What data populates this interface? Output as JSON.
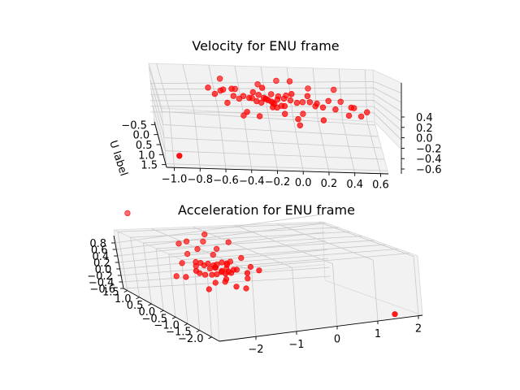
{
  "chart_data": [
    {
      "type": "scatter3d",
      "title": "Velocity for ENU frame",
      "xlabel": "",
      "ylabel": "U label",
      "zlabel": "",
      "x_ticks": [
        "−1.0",
        "−0.8",
        "−0.6",
        "−0.4",
        "−0.2",
        "0.0",
        "0.2",
        "0.4",
        "0.6"
      ],
      "y_ticks": [
        "−0.5",
        "0.0",
        "0.5",
        "1.0",
        "1.5"
      ],
      "z_ticks": [
        "0.4",
        "0.2",
        "0.0",
        "−0.2",
        "−0.4",
        "−0.6"
      ],
      "xlim": [
        -1.05,
        0.65
      ],
      "ylim": [
        -0.8,
        1.6
      ],
      "zlim": [
        -0.7,
        0.5
      ],
      "marker_color": "#ff0000",
      "points": [
        [
          -0.25,
          0.05,
          0.05
        ],
        [
          -0.2,
          0.1,
          0.02
        ],
        [
          -0.15,
          -0.05,
          0.0
        ],
        [
          -0.1,
          0.0,
          0.05
        ],
        [
          -0.3,
          0.0,
          0.1
        ],
        [
          -0.22,
          -0.1,
          -0.05
        ],
        [
          -0.18,
          0.15,
          0.0
        ],
        [
          -0.12,
          0.05,
          -0.08
        ],
        [
          -0.28,
          0.08,
          -0.02
        ],
        [
          -0.05,
          0.02,
          0.03
        ],
        [
          -0.35,
          -0.05,
          0.0
        ],
        [
          -0.08,
          -0.12,
          0.06
        ],
        [
          -0.2,
          -0.02,
          0.12
        ],
        [
          -0.16,
          0.2,
          -0.05
        ],
        [
          -0.24,
          0.12,
          0.08
        ],
        [
          0.0,
          0.05,
          0.0
        ],
        [
          -0.32,
          0.15,
          0.04
        ],
        [
          -0.1,
          0.18,
          -0.02
        ],
        [
          -0.42,
          0.0,
          0.06
        ],
        [
          -0.14,
          -0.15,
          0.02
        ],
        [
          -0.5,
          0.1,
          0.1
        ],
        [
          0.05,
          -0.1,
          -0.05
        ],
        [
          -0.55,
          0.2,
          0.0
        ],
        [
          0.1,
          0.1,
          0.05
        ],
        [
          -0.6,
          0.0,
          0.15
        ],
        [
          0.15,
          -0.05,
          -0.1
        ],
        [
          -0.45,
          -0.1,
          -0.05
        ],
        [
          0.2,
          0.2,
          0.0
        ],
        [
          -0.65,
          0.25,
          0.2
        ],
        [
          0.25,
          0.0,
          0.05
        ],
        [
          -0.7,
          0.1,
          0.25
        ],
        [
          0.3,
          0.15,
          -0.05
        ],
        [
          -0.38,
          0.25,
          0.15
        ],
        [
          0.35,
          -0.1,
          0.0
        ],
        [
          -0.6,
          -0.2,
          0.3
        ],
        [
          0.4,
          0.3,
          -0.1
        ],
        [
          -0.3,
          -0.25,
          0.2
        ],
        [
          0.45,
          0.05,
          -0.05
        ],
        [
          -0.52,
          0.3,
          0.35
        ],
        [
          0.5,
          0.2,
          -0.15
        ],
        [
          -0.25,
          -0.3,
          -0.1
        ],
        [
          0.0,
          0.35,
          -0.2
        ],
        [
          -0.15,
          -0.35,
          0.25
        ],
        [
          0.55,
          0.1,
          -0.1
        ],
        [
          -0.05,
          0.3,
          0.3
        ],
        [
          0.1,
          -0.3,
          0.15
        ],
        [
          -0.4,
          0.35,
          -0.1
        ],
        [
          0.2,
          0.35,
          -0.2
        ],
        [
          -0.2,
          0.4,
          0.05
        ],
        [
          0.3,
          -0.2,
          0.2
        ],
        [
          -0.48,
          -0.2,
          0.1
        ],
        [
          0.05,
          0.0,
          -0.25
        ],
        [
          -0.1,
          0.25,
          -0.15
        ],
        [
          0.15,
          0.25,
          0.1
        ],
        [
          -0.3,
          0.3,
          -0.2
        ],
        [
          -0.58,
          0.05,
          0.2
        ],
        [
          0.42,
          0.25,
          0.05
        ],
        [
          -0.18,
          -0.2,
          -0.15
        ],
        [
          0.08,
          0.15,
          0.2
        ],
        [
          -0.35,
          0.2,
          0.25
        ],
        [
          -0.95,
          1.5,
          -0.5
        ],
        [
          -0.28,
          0.3,
          0.4
        ],
        [
          -0.05,
          -0.15,
          0.35
        ],
        [
          0.02,
          0.2,
          -0.4
        ],
        [
          -0.42,
          0.1,
          -0.3
        ]
      ]
    },
    {
      "type": "scatter3d",
      "title": "Acceleration for ENU frame",
      "xlabel": "",
      "ylabel": "",
      "zlabel": "",
      "x_ticks": [
        "−2",
        "−1",
        "0",
        "1",
        "2"
      ],
      "y_ticks": [
        "1.5",
        "1.0",
        "0.5",
        "0.0",
        "−0.5",
        "−1.0",
        "−1.5",
        "−2.0"
      ],
      "z_ticks": [
        "0.8",
        "0.6",
        "0.4",
        "0.2",
        "0.0",
        "−0.2",
        "−0.4",
        "−0.6"
      ],
      "xlim": [
        -2.6,
        2.4
      ],
      "ylim": [
        -2.2,
        1.7
      ],
      "zlim": [
        -0.7,
        0.9
      ],
      "marker_color": "#ff0000",
      "points": [
        [
          -1.2,
          0.1,
          0.05
        ],
        [
          -1.1,
          0.0,
          0.0
        ],
        [
          -1.3,
          0.2,
          0.1
        ],
        [
          -1.0,
          -0.1,
          0.05
        ],
        [
          -1.25,
          -0.05,
          -0.05
        ],
        [
          -1.15,
          0.15,
          -0.02
        ],
        [
          -0.95,
          0.05,
          0.02
        ],
        [
          -1.35,
          0.05,
          0.08
        ],
        [
          -1.05,
          0.25,
          0.0
        ],
        [
          -1.2,
          -0.15,
          0.12
        ],
        [
          -1.1,
          0.3,
          -0.08
        ],
        [
          -0.9,
          -0.05,
          -0.05
        ],
        [
          -1.4,
          -0.1,
          0.0
        ],
        [
          -1.0,
          0.15,
          0.15
        ],
        [
          -1.3,
          0.35,
          -0.1
        ],
        [
          -0.85,
          0.2,
          0.05
        ],
        [
          -1.45,
          0.25,
          0.1
        ],
        [
          -1.15,
          -0.25,
          -0.05
        ],
        [
          -0.8,
          -0.1,
          0.1
        ],
        [
          -1.5,
          0.0,
          -0.08
        ],
        [
          -1.05,
          0.4,
          0.2
        ],
        [
          -0.75,
          0.1,
          -0.1
        ],
        [
          -1.6,
          0.2,
          0.2
        ],
        [
          -1.2,
          -0.3,
          0.2
        ],
        [
          -0.7,
          0.3,
          0.0
        ],
        [
          -1.7,
          -0.1,
          0.1
        ],
        [
          -0.9,
          0.5,
          0.3
        ],
        [
          -1.3,
          0.6,
          0.25
        ],
        [
          -0.6,
          -0.2,
          -0.15
        ],
        [
          -1.8,
          0.4,
          0.0
        ],
        [
          -1.0,
          -0.4,
          -0.2
        ],
        [
          -0.5,
          0.2,
          0.2
        ],
        [
          -1.4,
          0.5,
          -0.25
        ],
        [
          -0.65,
          0.5,
          -0.3
        ],
        [
          -1.9,
          0.1,
          -0.2
        ],
        [
          -1.1,
          0.7,
          0.4
        ],
        [
          -0.4,
          0.0,
          0.05
        ],
        [
          -1.6,
          -0.3,
          -0.3
        ],
        [
          -0.8,
          -0.5,
          0.35
        ],
        [
          -1.5,
          0.7,
          0.45
        ],
        [
          -0.55,
          0.6,
          0.4
        ],
        [
          -1.25,
          0.0,
          -0.4
        ],
        [
          -2.0,
          0.3,
          -0.35
        ],
        [
          -0.7,
          -0.3,
          -0.4
        ],
        [
          -1.75,
          0.6,
          0.5
        ],
        [
          -1.0,
          0.8,
          0.55
        ],
        [
          -0.45,
          -0.4,
          0.3
        ],
        [
          -1.85,
          -0.2,
          0.3
        ],
        [
          -0.95,
          0.1,
          -0.5
        ],
        [
          -1.35,
          0.9,
          -0.2
        ],
        [
          -2.4,
          1.5,
          0.8
        ],
        [
          2.1,
          -1.6,
          -0.6
        ]
      ]
    }
  ]
}
